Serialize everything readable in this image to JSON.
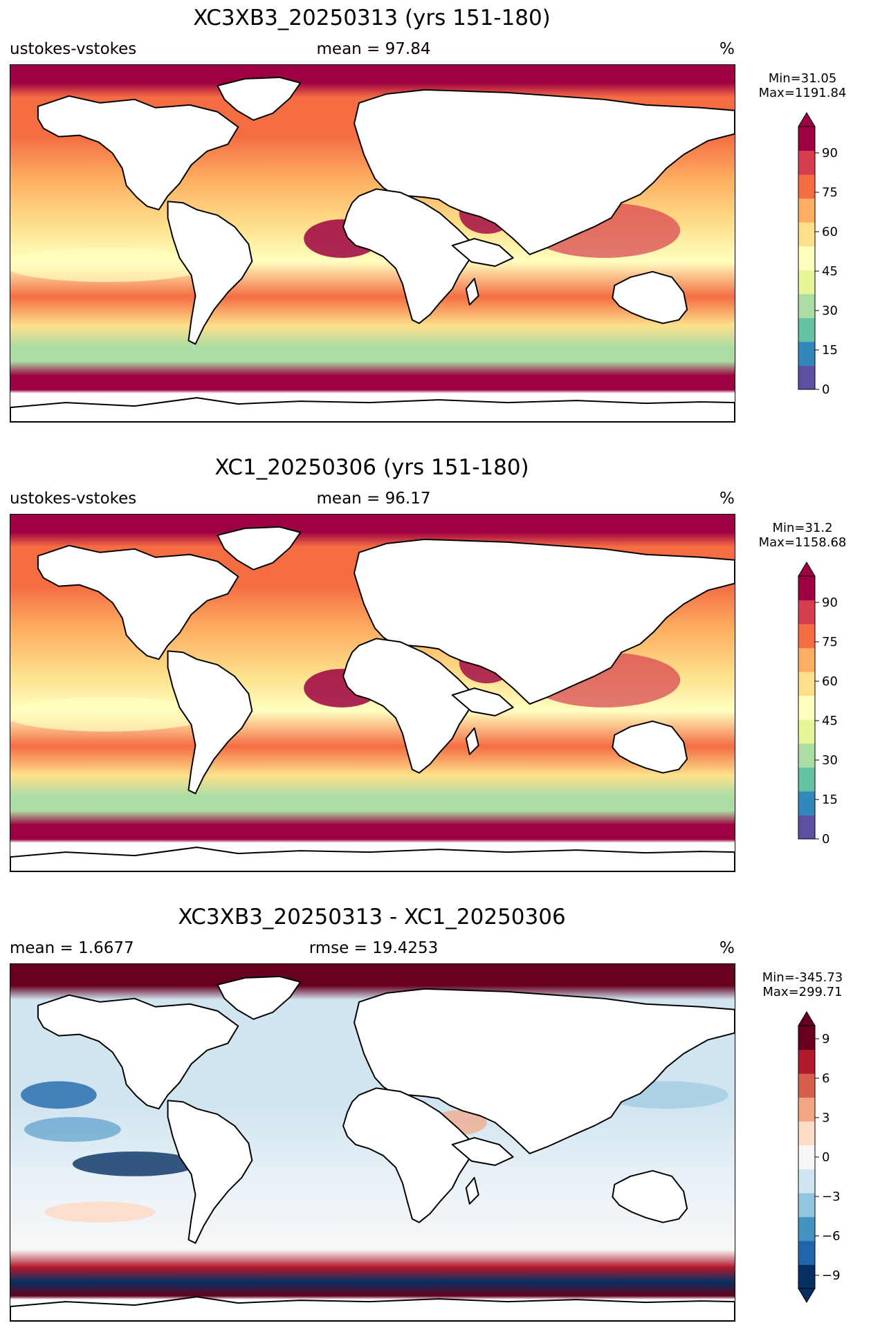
{
  "panels": [
    {
      "title": "XC3XB3_20250313 (yrs 151-180)",
      "left_label": "ustokes-vstokes",
      "center_label": "mean = 97.84",
      "units": "%",
      "min_text": "Min=31.05",
      "max_text": "Max=1191.84",
      "colorbar": {
        "ticks": [
          0,
          15,
          30,
          45,
          60,
          75,
          90
        ],
        "tick_labels": [
          "0",
          "15",
          "30",
          "45",
          "60",
          "75",
          "90"
        ],
        "range": [
          0,
          100
        ],
        "extend": "max",
        "colors": [
          "#5e4fa2",
          "#3288bd",
          "#66c2a5",
          "#abdda4",
          "#e6f598",
          "#ffffbf",
          "#fee08b",
          "#fdae61",
          "#f46d43",
          "#d53e4f",
          "#9e0142"
        ]
      }
    },
    {
      "title": "XC1_20250306 (yrs 151-180)",
      "left_label": "ustokes-vstokes",
      "center_label": "mean = 96.17",
      "units": "%",
      "min_text": "Min=31.2",
      "max_text": "Max=1158.68",
      "colorbar": {
        "ticks": [
          0,
          15,
          30,
          45,
          60,
          75,
          90
        ],
        "tick_labels": [
          "0",
          "15",
          "30",
          "45",
          "60",
          "75",
          "90"
        ],
        "range": [
          0,
          100
        ],
        "extend": "max",
        "colors": [
          "#5e4fa2",
          "#3288bd",
          "#66c2a5",
          "#abdda4",
          "#e6f598",
          "#ffffbf",
          "#fee08b",
          "#fdae61",
          "#f46d43",
          "#d53e4f",
          "#9e0142"
        ]
      }
    },
    {
      "title": "XC3XB3_20250313 - XC1_20250306",
      "left_label": "mean = 1.6677",
      "center_label": "rmse = 19.4253",
      "units": "%",
      "min_text": "Min=-345.73",
      "max_text": "Max=299.71",
      "colorbar": {
        "ticks": [
          -9,
          -6,
          -3,
          0,
          3,
          6,
          9
        ],
        "tick_labels": [
          "−9",
          "−6",
          "−3",
          "0",
          "3",
          "6",
          "9"
        ],
        "range": [
          -10,
          10
        ],
        "extend": "both",
        "colors": [
          "#053061",
          "#2166ac",
          "#4393c3",
          "#92c5de",
          "#d1e5f0",
          "#f7f7f7",
          "#fddbc7",
          "#f4a582",
          "#d6604d",
          "#b2182b",
          "#67001f"
        ]
      }
    }
  ],
  "colors": {
    "land": "#ffffff",
    "coastline": "#000000"
  }
}
